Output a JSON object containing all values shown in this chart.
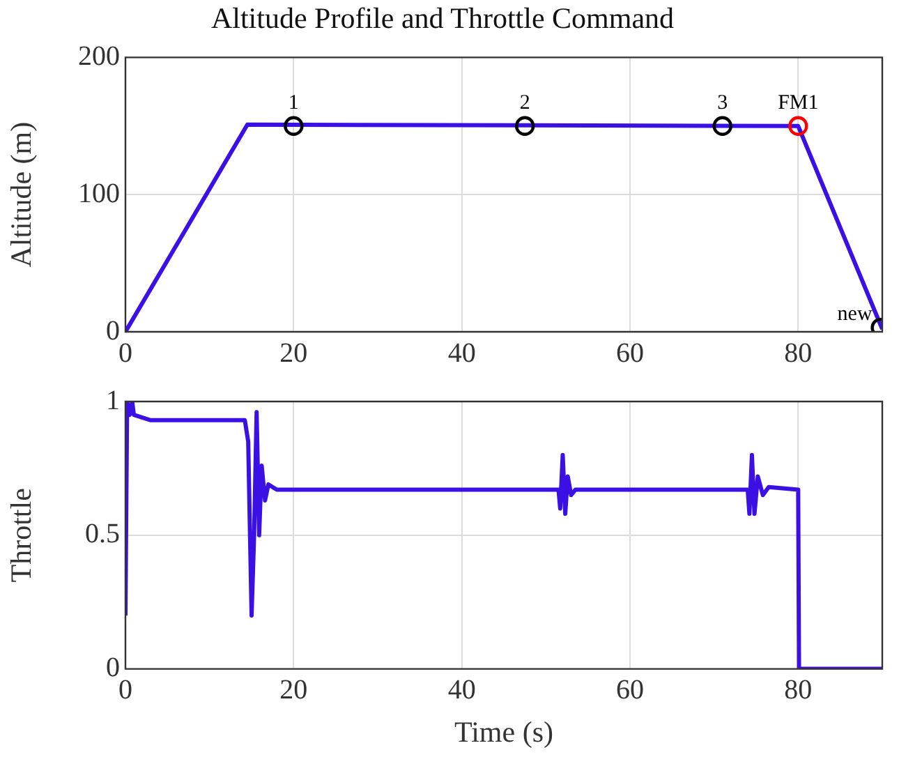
{
  "chart_data": [
    {
      "type": "line",
      "title": "Altitude Profile and Throttle Command",
      "ylabel": "Altitude (m)",
      "xlim": [
        0,
        90
      ],
      "xticks": [
        0,
        20,
        40,
        60,
        80
      ],
      "ylim": [
        0,
        200
      ],
      "yticks": [
        0,
        100,
        200
      ],
      "grid": true,
      "series": [
        {
          "color": "#3a10e5",
          "x": [
            0,
            14.5,
            80,
            90
          ],
          "values": [
            0,
            151,
            150,
            2
          ]
        },
        {
          "type": "scatter",
          "marker": "circle",
          "colors": [
            "#000000",
            "#000000",
            "#000000",
            "#ff0000",
            "#000000"
          ],
          "x": [
            20,
            47.5,
            71,
            80,
            89.8
          ],
          "values": [
            150,
            150,
            150,
            150,
            3
          ]
        }
      ],
      "annotations": [
        {
          "text": "1",
          "x": 20,
          "y": 150
        },
        {
          "text": "2",
          "x": 47.5,
          "y": 150
        },
        {
          "text": "3",
          "x": 71,
          "y": 150
        },
        {
          "text": "FM1",
          "x": 80,
          "y": 150
        },
        {
          "text": "new",
          "x": 89.8,
          "y": 3
        }
      ]
    },
    {
      "type": "line",
      "xlabel": "Time (s)",
      "ylabel": "Throttle",
      "xlim": [
        0,
        90
      ],
      "xticks": [
        0,
        20,
        40,
        60,
        80
      ],
      "ylim": [
        0,
        1
      ],
      "yticks": [
        0,
        {
          "value": 0.5,
          "label": "0.5"
        },
        1
      ],
      "grid": true,
      "series": [
        {
          "color": "#3a10e5",
          "x": [
            0,
            0.2,
            0.5,
            0.8,
            1.0,
            3,
            14.2,
            14.6,
            15,
            15.3,
            15.6,
            15.9,
            16.2,
            16.6,
            17,
            18,
            51.5,
            51.7,
            52,
            52.3,
            52.6,
            53,
            53.5,
            74,
            74.2,
            74.5,
            74.8,
            75.2,
            75.8,
            76.5,
            80,
            80.1,
            90
          ],
          "values": [
            0.2,
            1.0,
            0.95,
            1.0,
            0.95,
            0.93,
            0.93,
            0.85,
            0.2,
            0.5,
            0.96,
            0.5,
            0.76,
            0.63,
            0.69,
            0.67,
            0.67,
            0.6,
            0.8,
            0.58,
            0.72,
            0.65,
            0.67,
            0.67,
            0.58,
            0.8,
            0.58,
            0.72,
            0.65,
            0.68,
            0.67,
            0,
            0
          ]
        }
      ]
    }
  ]
}
